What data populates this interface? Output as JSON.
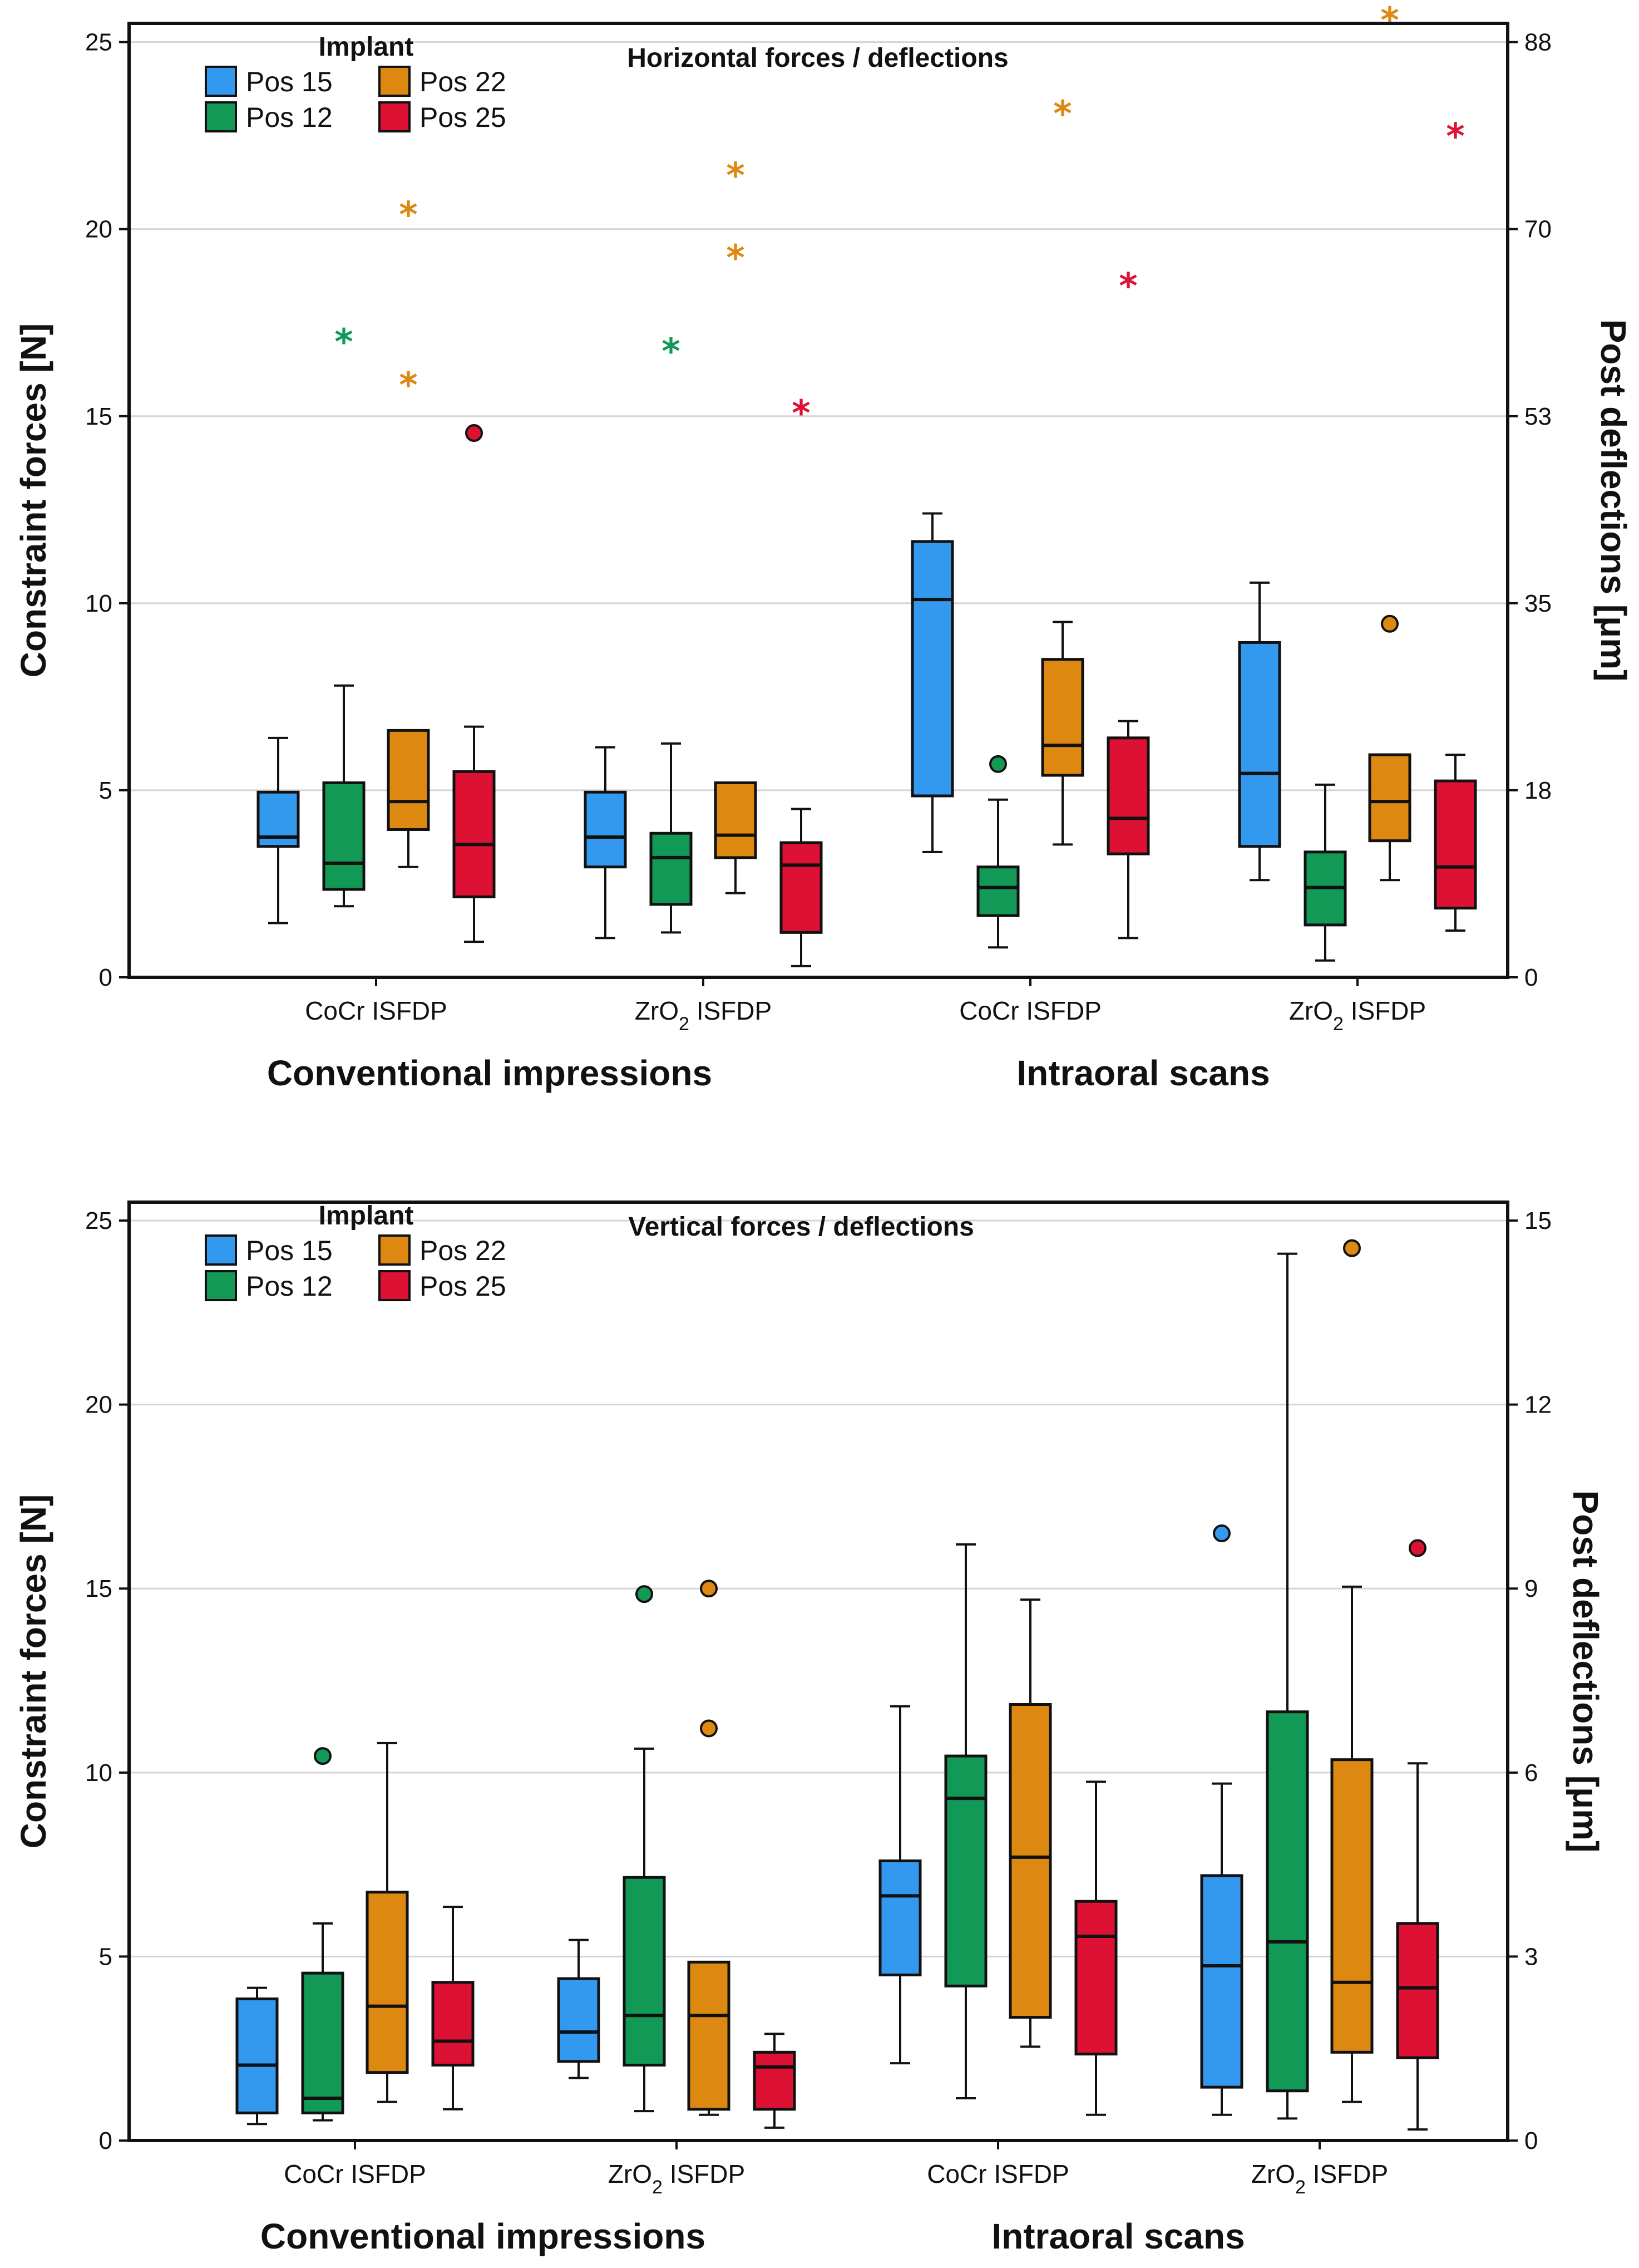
{
  "colors": {
    "Pos 15": "#3399ee",
    "Pos 12": "#119955",
    "Pos 22": "#dd8811",
    "Pos 25": "#dd1133"
  },
  "chart_data": [
    {
      "type": "boxplot",
      "title": "Horizontal forces / deflections",
      "ylabel": "Constraint forces [N]",
      "y2label": "Post deflections [μm]",
      "ylim": [
        0,
        25.5
      ],
      "yticks": [
        0,
        5,
        10,
        15,
        20,
        25
      ],
      "y2ticks": [
        {
          "label": "0",
          "at": 0
        },
        {
          "label": "18",
          "at": 5
        },
        {
          "label": "35",
          "at": 10
        },
        {
          "label": "53",
          "at": 15
        },
        {
          "label": "70",
          "at": 20
        },
        {
          "label": "88",
          "at": 25
        }
      ],
      "legend": {
        "title": "Implant",
        "items": [
          "Pos 15",
          "Pos 22",
          "Pos 12",
          "Pos 25"
        ]
      },
      "categories": [
        "CoCr ISFDP",
        "ZrO2 ISFDP",
        "CoCr ISFDP",
        "ZrO2 ISFDP"
      ],
      "groups": [
        {
          "label": "Conventional impressions",
          "categories": [
            0,
            1
          ]
        },
        {
          "label": "Intraoral scans",
          "categories": [
            2,
            3
          ]
        }
      ],
      "series": [
        {
          "name": "Pos 15",
          "boxes": [
            {
              "min": 1.45,
              "q1": 3.5,
              "median": 3.75,
              "q3": 4.95,
              "max": 6.4,
              "outliers": [],
              "extremes": []
            },
            {
              "min": 1.05,
              "q1": 2.95,
              "median": 3.75,
              "q3": 4.95,
              "max": 6.15,
              "outliers": [],
              "extremes": []
            },
            {
              "min": 3.35,
              "q1": 4.85,
              "median": 10.1,
              "q3": 11.65,
              "max": 12.4,
              "outliers": [],
              "extremes": []
            },
            {
              "min": 2.6,
              "q1": 3.5,
              "median": 5.45,
              "q3": 8.95,
              "max": 10.55,
              "outliers": [],
              "extremes": []
            }
          ]
        },
        {
          "name": "Pos 12",
          "boxes": [
            {
              "min": 1.9,
              "q1": 2.35,
              "median": 3.05,
              "q3": 5.2,
              "max": 7.8,
              "outliers": [],
              "extremes": [
                17.1
              ]
            },
            {
              "min": 1.2,
              "q1": 1.95,
              "median": 3.2,
              "q3": 3.85,
              "max": 6.25,
              "outliers": [],
              "extremes": [
                16.85
              ]
            },
            {
              "min": 0.8,
              "q1": 1.65,
              "median": 2.4,
              "q3": 2.95,
              "max": 4.75,
              "outliers": [
                5.7
              ],
              "extremes": []
            },
            {
              "min": 0.45,
              "q1": 1.4,
              "median": 2.4,
              "q3": 3.35,
              "max": 5.15,
              "outliers": [],
              "extremes": []
            }
          ]
        },
        {
          "name": "Pos 22",
          "boxes": [
            {
              "min": 2.95,
              "q1": 3.95,
              "median": 4.7,
              "q3": 6.6,
              "max": 6.6,
              "outliers": [],
              "extremes": [
                15.95,
                20.5
              ]
            },
            {
              "min": 2.25,
              "q1": 3.2,
              "median": 3.8,
              "q3": 5.2,
              "max": 5.2,
              "outliers": [],
              "extremes": [
                19.35,
                21.55
              ]
            },
            {
              "min": 3.55,
              "q1": 5.4,
              "median": 6.2,
              "q3": 8.5,
              "max": 9.5,
              "outliers": [],
              "extremes": [
                23.2
              ]
            },
            {
              "min": 2.6,
              "q1": 3.65,
              "median": 4.7,
              "q3": 5.95,
              "max": 5.95,
              "outliers": [
                9.45
              ],
              "extremes": [
                25.7
              ]
            }
          ]
        },
        {
          "name": "Pos 25",
          "boxes": [
            {
              "min": 0.95,
              "q1": 2.15,
              "median": 3.55,
              "q3": 5.5,
              "max": 6.7,
              "outliers": [
                14.55
              ],
              "extremes": []
            },
            {
              "min": 0.3,
              "q1": 1.2,
              "median": 3.0,
              "q3": 3.6,
              "max": 4.5,
              "outliers": [],
              "extremes": [
                15.2
              ]
            },
            {
              "min": 1.05,
              "q1": 3.3,
              "median": 4.25,
              "q3": 6.4,
              "max": 6.85,
              "outliers": [],
              "extremes": [
                18.6
              ]
            },
            {
              "min": 1.25,
              "q1": 1.85,
              "median": 2.95,
              "q3": 5.25,
              "max": 5.95,
              "outliers": [],
              "extremes": [
                22.6
              ]
            }
          ]
        }
      ]
    },
    {
      "type": "boxplot",
      "title": "Vertical forces / deflections",
      "ylabel": "Constraint forces [N]",
      "y2label": "Post deflections [μm]",
      "ylim": [
        0,
        25.5
      ],
      "yticks": [
        0,
        5,
        10,
        15,
        20,
        25
      ],
      "y2ticks": [
        {
          "label": "0",
          "at": 0
        },
        {
          "label": "3",
          "at": 5
        },
        {
          "label": "6",
          "at": 10
        },
        {
          "label": "9",
          "at": 15
        },
        {
          "label": "12",
          "at": 20
        },
        {
          "label": "15",
          "at": 25
        }
      ],
      "legend": {
        "title": "Implant",
        "items": [
          "Pos 15",
          "Pos 22",
          "Pos 12",
          "Pos 25"
        ]
      },
      "categories": [
        "CoCr ISFDP",
        "ZrO2 ISFDP",
        "CoCr ISFDP",
        "ZrO2 ISFDP"
      ],
      "groups": [
        {
          "label": "Conventional impressions",
          "categories": [
            0,
            1
          ]
        },
        {
          "label": "Intraoral scans",
          "categories": [
            2,
            3
          ]
        }
      ],
      "series": [
        {
          "name": "Pos 15",
          "boxes": [
            {
              "min": 0.45,
              "q1": 0.75,
              "median": 2.05,
              "q3": 3.85,
              "max": 4.15,
              "outliers": [],
              "extremes": []
            },
            {
              "min": 1.7,
              "q1": 2.15,
              "median": 2.95,
              "q3": 4.4,
              "max": 5.45,
              "outliers": [],
              "extremes": []
            },
            {
              "min": 2.1,
              "q1": 4.5,
              "median": 6.65,
              "q3": 7.6,
              "max": 11.8,
              "outliers": [],
              "extremes": []
            },
            {
              "min": 0.7,
              "q1": 1.45,
              "median": 4.75,
              "q3": 7.2,
              "max": 9.7,
              "outliers": [
                16.5
              ],
              "extremes": []
            }
          ]
        },
        {
          "name": "Pos 12",
          "boxes": [
            {
              "min": 0.55,
              "q1": 0.75,
              "median": 1.15,
              "q3": 4.55,
              "max": 5.9,
              "outliers": [
                10.45
              ],
              "extremes": []
            },
            {
              "min": 0.8,
              "q1": 2.05,
              "median": 3.4,
              "q3": 7.15,
              "max": 10.65,
              "outliers": [
                14.85
              ],
              "extremes": []
            },
            {
              "min": 1.15,
              "q1": 4.2,
              "median": 9.3,
              "q3": 10.45,
              "max": 16.2,
              "outliers": [],
              "extremes": []
            },
            {
              "min": 0.6,
              "q1": 1.35,
              "median": 5.4,
              "q3": 11.65,
              "max": 24.1,
              "outliers": [],
              "extremes": []
            }
          ]
        },
        {
          "name": "Pos 22",
          "boxes": [
            {
              "min": 1.05,
              "q1": 1.85,
              "median": 3.65,
              "q3": 6.75,
              "max": 10.8,
              "outliers": [],
              "extremes": []
            },
            {
              "min": 0.7,
              "q1": 0.85,
              "median": 3.4,
              "q3": 4.85,
              "max": 4.85,
              "outliers": [
                11.2,
                15.0
              ],
              "extremes": []
            },
            {
              "min": 2.55,
              "q1": 3.35,
              "median": 7.7,
              "q3": 11.85,
              "max": 14.7,
              "outliers": [],
              "extremes": []
            },
            {
              "min": 1.05,
              "q1": 2.4,
              "median": 4.3,
              "q3": 10.35,
              "max": 15.05,
              "outliers": [
                24.25
              ],
              "extremes": []
            }
          ]
        },
        {
          "name": "Pos 25",
          "boxes": [
            {
              "min": 0.85,
              "q1": 2.05,
              "median": 2.7,
              "q3": 4.3,
              "max": 6.35,
              "outliers": [],
              "extremes": []
            },
            {
              "min": 0.35,
              "q1": 0.85,
              "median": 2.0,
              "q3": 2.4,
              "max": 2.9,
              "outliers": [],
              "extremes": []
            },
            {
              "min": 0.7,
              "q1": 2.35,
              "median": 5.55,
              "q3": 6.5,
              "max": 9.75,
              "outliers": [],
              "extremes": []
            },
            {
              "min": 0.3,
              "q1": 2.25,
              "median": 4.15,
              "q3": 5.9,
              "max": 10.25,
              "outliers": [
                16.1
              ],
              "extremes": []
            }
          ]
        }
      ]
    }
  ]
}
